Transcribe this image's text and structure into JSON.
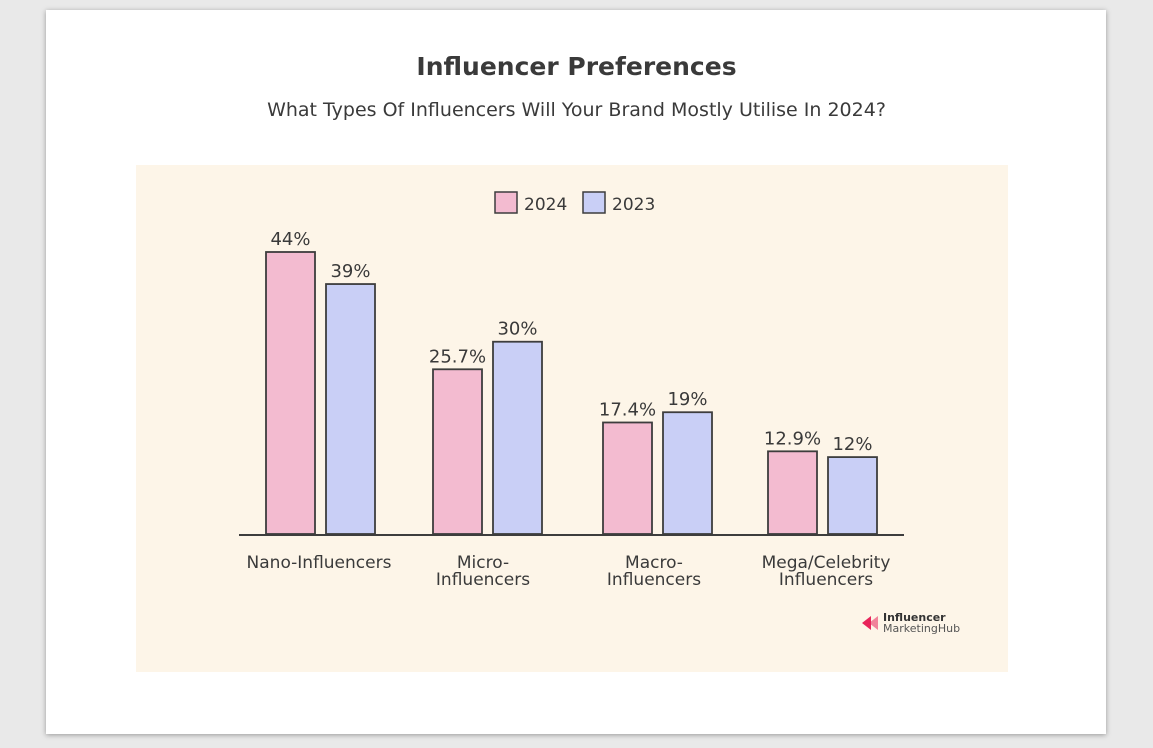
{
  "colors": {
    "page_bg": "#e9e9e9",
    "card_bg": "#ffffff",
    "plot_bg": "#fdf5e8",
    "series_2024": "#f3bbd0",
    "series_2023": "#c9cff6",
    "outline": "#3d3d3d",
    "text": "#3a3a3a"
  },
  "brand": {
    "line1": "Influencer",
    "line2": "MarketingHub",
    "color": "#e8245a"
  },
  "chart_data": {
    "type": "bar",
    "title": "Influencer Preferences",
    "subtitle": "What Types Of Influencers Will Your Brand Mostly Utilise In 2024?",
    "xlabel": "",
    "ylabel": "",
    "ylim": [
      0,
      50
    ],
    "grid": false,
    "legend_position": "top-center",
    "categories": [
      [
        "Nano-Influencers"
      ],
      [
        "Micro-",
        "Influencers"
      ],
      [
        "Macro-",
        "Influencers"
      ],
      [
        "Mega/Celebrity",
        "Influencers"
      ]
    ],
    "series": [
      {
        "name": "2024",
        "values": [
          44,
          25.7,
          17.4,
          12.9
        ],
        "labels": [
          "44%",
          "25.7%",
          "17.4%",
          "12.9%"
        ]
      },
      {
        "name": "2023",
        "values": [
          39,
          30,
          19,
          12
        ],
        "labels": [
          "39%",
          "30%",
          "19%",
          "12%"
        ]
      }
    ]
  }
}
